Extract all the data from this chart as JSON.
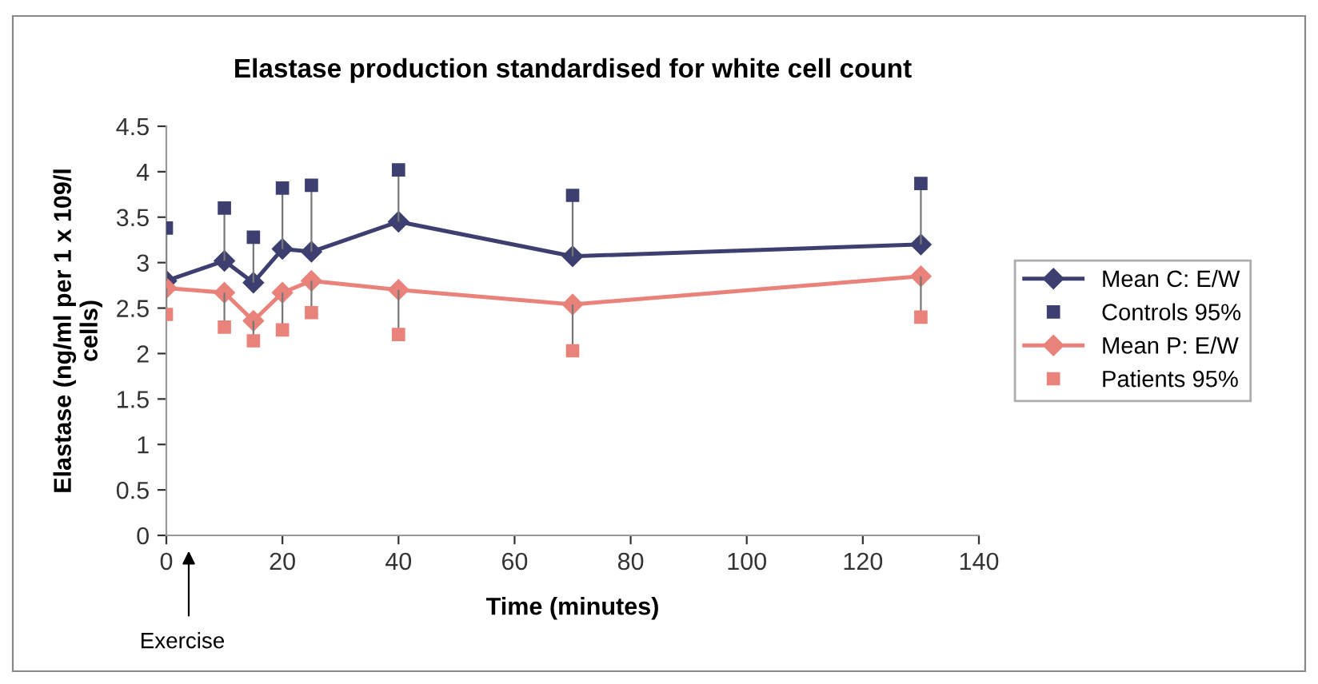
{
  "chart_data": {
    "type": "line",
    "title": "Elastase production standardised for white cell count",
    "xlabel": "Time (minutes)",
    "ylabel": "Elastase (ng/ml per 1 x 109/l\ncells)",
    "x": [
      0,
      10,
      15,
      20,
      25,
      40,
      70,
      130
    ],
    "series": [
      {
        "name": "Mean C: E/W",
        "marker": "diamond",
        "color": "#3c3f6f",
        "values": [
          2.8,
          3.02,
          2.78,
          3.15,
          3.12,
          3.45,
          3.07,
          3.2
        ]
      },
      {
        "name": "Controls 95%",
        "type": "scatter",
        "marker": "square",
        "color": "#3c3f6f",
        "values": [
          3.38,
          3.6,
          3.28,
          3.82,
          3.85,
          4.02,
          3.74,
          3.87
        ],
        "errors": [
          [
            2.8,
            3.38
          ],
          [
            3.02,
            3.6
          ],
          [
            2.78,
            3.28
          ],
          [
            3.15,
            3.82
          ],
          [
            3.12,
            3.85
          ],
          [
            3.45,
            4.02
          ],
          [
            3.07,
            3.74
          ],
          [
            3.2,
            3.87
          ]
        ]
      },
      {
        "name": "Mean P: E/W",
        "marker": "diamond",
        "color": "#e8827a",
        "values": [
          2.72,
          2.67,
          2.36,
          2.67,
          2.8,
          2.7,
          2.54,
          2.85
        ]
      },
      {
        "name": "Patients 95%",
        "type": "scatter",
        "marker": "square",
        "color": "#e8827a",
        "values": [
          2.43,
          2.29,
          2.14,
          2.26,
          2.45,
          2.21,
          2.03,
          2.4
        ],
        "errors": [
          [
            2.43,
            2.72
          ],
          [
            2.29,
            2.67
          ],
          [
            2.14,
            2.36
          ],
          [
            2.26,
            2.67
          ],
          [
            2.45,
            2.8
          ],
          [
            2.21,
            2.7
          ],
          [
            2.03,
            2.54
          ],
          [
            2.4,
            2.85
          ]
        ]
      }
    ],
    "xlim": [
      0,
      140
    ],
    "xticks": [
      0,
      20,
      40,
      60,
      80,
      100,
      120,
      140
    ],
    "ylim": [
      0,
      4.5
    ],
    "yticks": [
      0,
      0.5,
      1,
      1.5,
      2,
      2.5,
      3,
      3.5,
      4,
      4.5
    ],
    "annotations": [
      "Exercise"
    ],
    "grid": false,
    "legend": "right"
  }
}
